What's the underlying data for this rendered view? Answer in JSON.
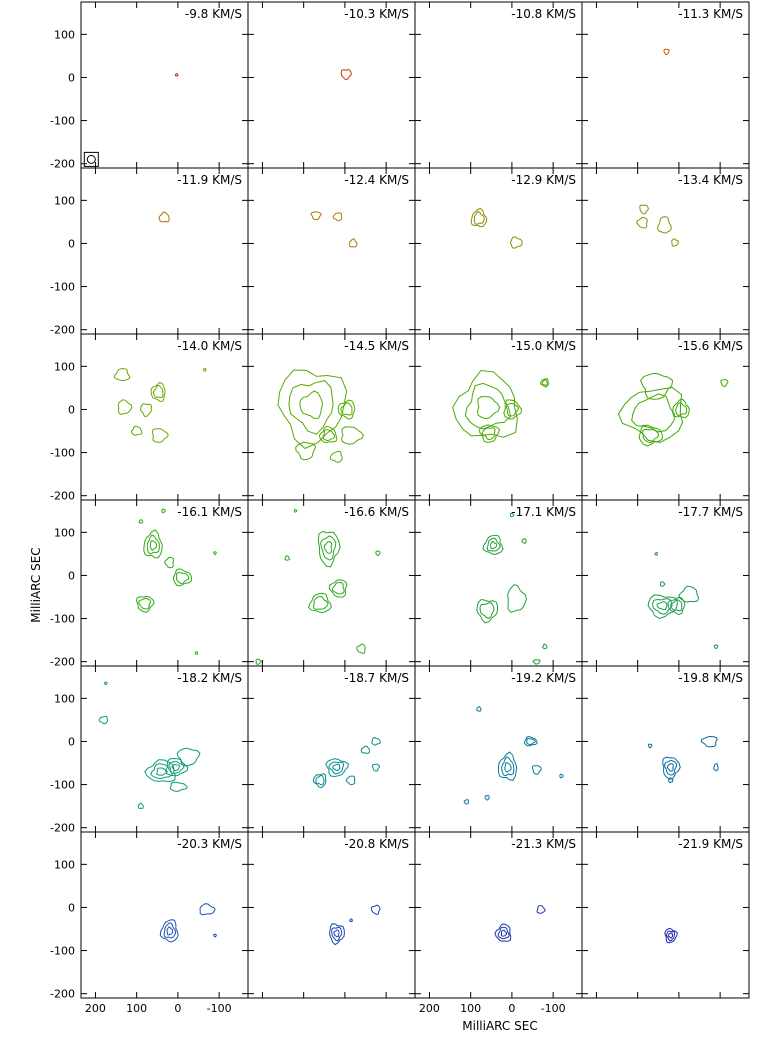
{
  "chart_data": {
    "type": "contour",
    "rows": 6,
    "cols": 4,
    "x_unit_label": "MilliARC SEC",
    "y_unit_label": "MilliARC SEC",
    "xlabel": "MilliARC SEC",
    "ylabel": "MilliARC SEC",
    "xlim": [
      235,
      -170
    ],
    "ylim": [
      -210,
      175
    ],
    "x_ticks": [
      200,
      100,
      0,
      -100
    ],
    "y_ticks": [
      100,
      0,
      -100,
      -200
    ],
    "x_tick_labels": [
      "200",
      "100",
      "0",
      "-100"
    ],
    "y_tick_labels": [
      "100",
      "0",
      "-100",
      "-200"
    ],
    "panels": [
      {
        "label": "-9.8 KM/S",
        "color": "#cc2200",
        "beam": true,
        "blobs": [
          [
            3,
            6,
            3,
            2,
            1
          ]
        ]
      },
      {
        "label": "-10.3 KM/S",
        "color": "#cc3300",
        "blobs": [
          [
            -3,
            8,
            12,
            11,
            1
          ]
        ]
      },
      {
        "label": "-10.8 KM/S",
        "color": "#cc4400",
        "blobs": []
      },
      {
        "label": "-11.3 KM/S",
        "color": "#c85a00",
        "blobs": [
          [
            30,
            60,
            6,
            6,
            1
          ]
        ]
      },
      {
        "label": "-11.9 KM/S",
        "color": "#b86a00",
        "blobs": [
          [
            33,
            60,
            12,
            11,
            1
          ]
        ]
      },
      {
        "label": "-12.4 KM/S",
        "color": "#aa7a00",
        "blobs": [
          [
            70,
            65,
            11,
            9,
            1
          ],
          [
            17,
            62,
            10,
            9,
            1
          ],
          [
            -20,
            0,
            9,
            9,
            1
          ]
        ]
      },
      {
        "label": "-12.9 KM/S",
        "color": "#8c8c00",
        "blobs": [
          [
            80,
            58,
            18,
            20,
            2
          ],
          [
            -10,
            2,
            14,
            12,
            1
          ]
        ]
      },
      {
        "label": "-13.4 KM/S",
        "color": "#7a9a00",
        "blobs": [
          [
            85,
            80,
            10,
            10,
            1
          ],
          [
            88,
            48,
            12,
            12,
            1
          ],
          [
            35,
            42,
            15,
            19,
            1
          ],
          [
            10,
            2,
            8,
            8,
            1
          ]
        ]
      },
      {
        "label": "-14.0 KM/S",
        "color": "#66aa00",
        "blobs": [
          [
            135,
            80,
            17,
            14,
            1
          ],
          [
            130,
            5,
            16,
            16,
            1
          ],
          [
            77,
            0,
            13,
            14,
            1
          ],
          [
            47,
            40,
            17,
            20,
            2
          ],
          [
            100,
            -50,
            12,
            10,
            1
          ],
          [
            45,
            -60,
            18,
            16,
            1
          ],
          [
            -65,
            92,
            3,
            3,
            1
          ]
        ]
      },
      {
        "label": "-14.5 KM/S",
        "color": "#55aa00",
        "blobs": [
          [
            80,
            10,
            80,
            85,
            3
          ],
          [
            -5,
            0,
            20,
            20,
            2
          ],
          [
            40,
            -60,
            20,
            18,
            2
          ],
          [
            -15,
            -60,
            25,
            20,
            1
          ],
          [
            95,
            -95,
            22,
            20,
            1
          ],
          [
            20,
            -110,
            14,
            12,
            1
          ]
        ]
      },
      {
        "label": "-15.0 KM/S",
        "color": "#48aa00",
        "blobs": [
          [
            60,
            5,
            75,
            75,
            3
          ],
          [
            0,
            0,
            20,
            22,
            2
          ],
          [
            55,
            -55,
            22,
            20,
            2
          ],
          [
            -80,
            62,
            9,
            9,
            2
          ]
        ]
      },
      {
        "label": "-15.6 KM/S",
        "color": "#3caa00",
        "blobs": [
          [
            55,
            55,
            35,
            30,
            1
          ],
          [
            60,
            -10,
            75,
            60,
            2
          ],
          [
            -5,
            0,
            20,
            20,
            2
          ],
          [
            70,
            -60,
            28,
            22,
            2
          ],
          [
            -110,
            62,
            8,
            8,
            1
          ]
        ]
      },
      {
        "label": "-16.1 KM/S",
        "color": "#30aa10",
        "blobs": [
          [
            60,
            70,
            22,
            30,
            3
          ],
          [
            -10,
            -5,
            22,
            18,
            2
          ],
          [
            80,
            -65,
            20,
            18,
            2
          ],
          [
            20,
            30,
            10,
            12,
            1
          ],
          [
            90,
            125,
            4,
            4,
            1
          ],
          [
            35,
            150,
            4,
            4,
            1
          ],
          [
            -90,
            52,
            3,
            3,
            1
          ],
          [
            -45,
            -180,
            3,
            3,
            1
          ]
        ]
      },
      {
        "label": "-16.6 KM/S",
        "color": "#28aa20",
        "blobs": [
          [
            40,
            65,
            25,
            40,
            3
          ],
          [
            15,
            -30,
            20,
            20,
            2
          ],
          [
            60,
            -65,
            25,
            22,
            2
          ],
          [
            120,
            150,
            3,
            3,
            1
          ],
          [
            -80,
            52,
            5,
            5,
            1
          ],
          [
            -40,
            -170,
            10,
            10,
            1
          ],
          [
            140,
            40,
            5,
            5,
            1
          ],
          [
            210,
            -200,
            6,
            6,
            1
          ]
        ]
      },
      {
        "label": "-17.1 KM/S",
        "color": "#22a035",
        "blobs": [
          [
            45,
            70,
            22,
            22,
            3
          ],
          [
            -10,
            -55,
            22,
            30,
            1
          ],
          [
            60,
            -80,
            25,
            25,
            2
          ],
          [
            -30,
            80,
            5,
            5,
            1
          ],
          [
            -80,
            -165,
            5,
            5,
            1
          ],
          [
            0,
            140,
            4,
            4,
            1
          ],
          [
            -60,
            -200,
            8,
            5,
            1
          ]
        ]
      },
      {
        "label": "-17.7 KM/S",
        "color": "#1a9a50",
        "blobs": [
          [
            40,
            -70,
            35,
            25,
            3
          ],
          [
            5,
            -70,
            20,
            18,
            2
          ],
          [
            -25,
            -45,
            22,
            18,
            1
          ],
          [
            40,
            -20,
            5,
            5,
            1
          ],
          [
            -90,
            -165,
            4,
            4,
            1
          ],
          [
            55,
            50,
            3,
            3,
            1
          ]
        ]
      },
      {
        "label": "-18.2 KM/S",
        "color": "#109a78",
        "blobs": [
          [
            40,
            -70,
            35,
            25,
            3
          ],
          [
            5,
            -60,
            25,
            20,
            3
          ],
          [
            -25,
            -35,
            25,
            20,
            1
          ],
          [
            180,
            50,
            10,
            8,
            1
          ],
          [
            90,
            -150,
            6,
            6,
            1
          ],
          [
            0,
            -105,
            20,
            10,
            1
          ],
          [
            175,
            135,
            3,
            3,
            1
          ]
        ]
      },
      {
        "label": "-18.7 KM/S",
        "color": "#088a90",
        "blobs": [
          [
            20,
            -60,
            25,
            20,
            3
          ],
          [
            60,
            -90,
            15,
            15,
            2
          ],
          [
            -50,
            -20,
            10,
            8,
            1
          ],
          [
            -75,
            0,
            10,
            8,
            1
          ],
          [
            -75,
            -60,
            8,
            8,
            1
          ],
          [
            -15,
            -90,
            10,
            10,
            1
          ]
        ]
      },
      {
        "label": "-19.2 KM/S",
        "color": "#0a7a9a",
        "blobs": [
          [
            10,
            -60,
            22,
            30,
            3
          ],
          [
            -45,
            0,
            15,
            10,
            2
          ],
          [
            -60,
            -65,
            10,
            10,
            1
          ],
          [
            110,
            -140,
            5,
            5,
            1
          ],
          [
            80,
            75,
            5,
            5,
            1
          ],
          [
            -120,
            -80,
            4,
            4,
            1
          ],
          [
            60,
            -130,
            5,
            5,
            1
          ]
        ]
      },
      {
        "label": "-19.8 KM/S",
        "color": "#0a6aa0",
        "blobs": [
          [
            20,
            -60,
            20,
            25,
            3
          ],
          [
            -75,
            0,
            18,
            12,
            1
          ],
          [
            -90,
            -60,
            5,
            8,
            1
          ],
          [
            20,
            -90,
            5,
            5,
            1
          ],
          [
            70,
            -10,
            4,
            4,
            1
          ]
        ]
      },
      {
        "label": "-20.3 KM/S",
        "color": "#1a55b0",
        "blobs": [
          [
            20,
            -55,
            20,
            25,
            3
          ],
          [
            -70,
            -5,
            18,
            12,
            1
          ],
          [
            -90,
            -65,
            3,
            3,
            1
          ]
        ]
      },
      {
        "label": "-20.8 KM/S",
        "color": "#1a45b0",
        "blobs": [
          [
            20,
            -60,
            18,
            22,
            3
          ],
          [
            -75,
            -5,
            10,
            10,
            1
          ],
          [
            -15,
            -30,
            3,
            3,
            1
          ]
        ]
      },
      {
        "label": "-21.3 KM/S",
        "color": "#1a35b0",
        "blobs": [
          [
            20,
            -60,
            18,
            20,
            3
          ],
          [
            -70,
            -5,
            9,
            9,
            1
          ]
        ]
      },
      {
        "label": "-21.9 KM/S",
        "color": "#1a25b0",
        "blobs": [
          [
            20,
            -65,
            14,
            16,
            3
          ]
        ]
      }
    ]
  }
}
